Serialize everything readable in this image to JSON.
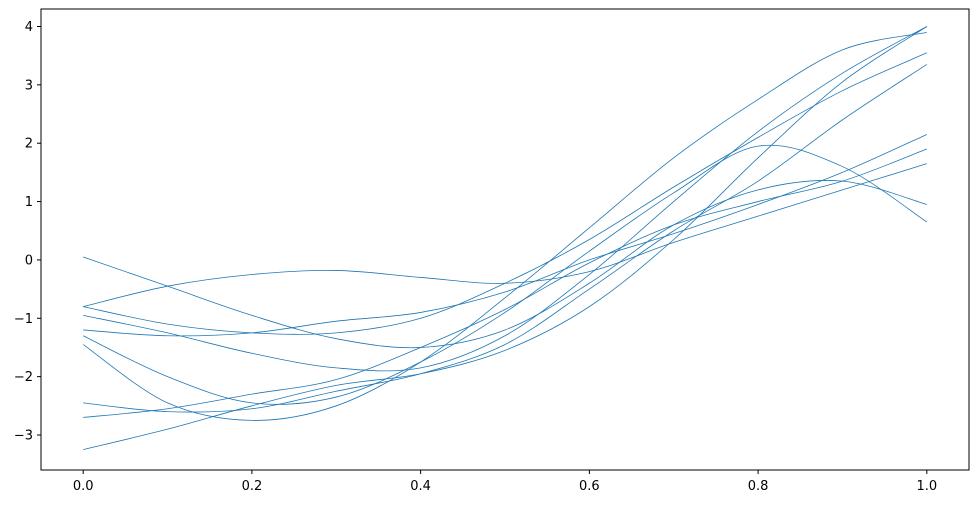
{
  "chart_data": {
    "type": "line",
    "title": "",
    "xlabel": "",
    "ylabel": "",
    "xlim": [
      -0.05,
      1.05
    ],
    "ylim": [
      -3.6,
      4.3
    ],
    "xticks": [
      {
        "value": 0.0,
        "label": "0.0"
      },
      {
        "value": 0.2,
        "label": "0.2"
      },
      {
        "value": 0.4,
        "label": "0.4"
      },
      {
        "value": 0.6,
        "label": "0.6"
      },
      {
        "value": 0.8,
        "label": "0.8"
      },
      {
        "value": 1.0,
        "label": "1.0"
      }
    ],
    "yticks": [
      {
        "value": -3,
        "label": "−3"
      },
      {
        "value": -2,
        "label": "−2"
      },
      {
        "value": -1,
        "label": "−1"
      },
      {
        "value": 0,
        "label": "0"
      },
      {
        "value": 1,
        "label": "1"
      },
      {
        "value": 2,
        "label": "2"
      },
      {
        "value": 3,
        "label": "3"
      },
      {
        "value": 4,
        "label": "4"
      }
    ],
    "grid": false,
    "legend": "none",
    "line_color": "#1f77b4",
    "x": [
      0.0,
      0.1,
      0.2,
      0.3,
      0.4,
      0.5,
      0.6,
      0.7,
      0.8,
      0.9,
      1.0
    ],
    "series": [
      {
        "values": [
          0.05,
          -0.45,
          -0.95,
          -1.35,
          -1.5,
          -1.2,
          -0.4,
          0.6,
          1.2,
          1.35,
          0.95
        ]
      },
      {
        "values": [
          -0.8,
          -0.45,
          -0.25,
          -0.18,
          -0.3,
          -0.4,
          -0.2,
          0.3,
          0.75,
          1.2,
          1.65
        ]
      },
      {
        "values": [
          -0.8,
          -1.1,
          -1.25,
          -1.25,
          -1.0,
          -0.4,
          0.35,
          1.25,
          2.1,
          2.9,
          3.55
        ]
      },
      {
        "values": [
          -1.2,
          -1.3,
          -1.25,
          -1.05,
          -0.9,
          -0.55,
          0.0,
          0.45,
          0.95,
          1.5,
          2.15
        ]
      },
      {
        "values": [
          -0.95,
          -1.25,
          -1.6,
          -1.85,
          -1.85,
          -1.3,
          -0.25,
          1.0,
          2.2,
          3.2,
          4.0
        ]
      },
      {
        "values": [
          -1.3,
          -2.0,
          -2.45,
          -2.35,
          -1.75,
          -0.9,
          0.15,
          1.15,
          1.95,
          1.6,
          0.65
        ]
      },
      {
        "values": [
          -1.45,
          -2.45,
          -2.75,
          -2.5,
          -1.75,
          -0.65,
          0.55,
          1.75,
          2.75,
          3.6,
          3.9
        ]
      },
      {
        "values": [
          -2.45,
          -2.6,
          -2.55,
          -2.25,
          -1.95,
          -1.45,
          -0.5,
          0.5,
          1.35,
          2.4,
          3.35
        ]
      },
      {
        "values": [
          -2.7,
          -2.55,
          -2.3,
          -2.05,
          -1.5,
          -0.85,
          -0.05,
          0.6,
          1.0,
          1.35,
          1.9
        ]
      },
      {
        "values": [
          -3.25,
          -2.9,
          -2.5,
          -2.15,
          -1.95,
          -1.55,
          -0.8,
          0.35,
          1.75,
          3.05,
          4.0
        ]
      }
    ]
  }
}
